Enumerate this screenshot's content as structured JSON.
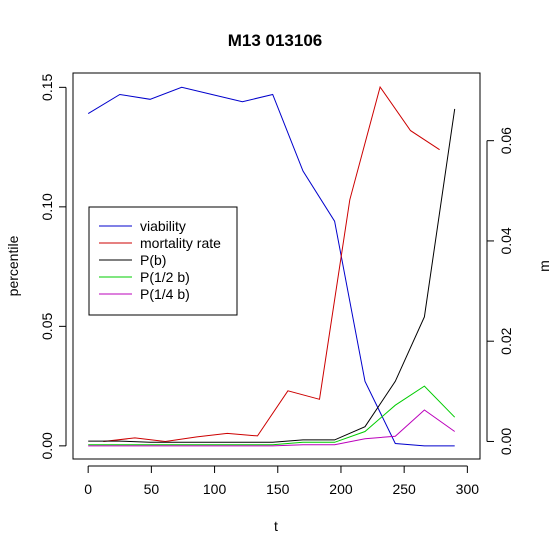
{
  "chart_data": {
    "type": "line",
    "title": "M13 013106",
    "xlabel": "t",
    "ylabel_left": "percentile",
    "ylabel_right": "m",
    "xlim": [
      -12,
      310
    ],
    "ylim_left": [
      -0.0055,
      0.156
    ],
    "ylim_right": [
      -0.0035,
      0.0735
    ],
    "x_ticks": [
      0,
      50,
      100,
      150,
      200,
      250,
      300
    ],
    "y_ticks_left": [
      0.0,
      0.05,
      0.1,
      0.15
    ],
    "y_ticks_left_labels": [
      "0.00",
      "0.05",
      "0.10",
      "0.15"
    ],
    "y_ticks_right": [
      0.0,
      0.02,
      0.04,
      0.06
    ],
    "y_ticks_right_labels": [
      "0.00",
      "0.02",
      "0.04",
      "0.06"
    ],
    "grid": false,
    "legend_position": "left-middle",
    "series": [
      {
        "name": "viability",
        "color": "#0000cc",
        "axis": "left",
        "x": [
          0,
          25,
          49,
          74,
          98,
          122,
          146,
          170,
          195,
          219,
          243,
          266,
          290
        ],
        "y": [
          0.139,
          0.147,
          0.145,
          0.15,
          0.147,
          0.144,
          0.147,
          0.115,
          0.094,
          0.027,
          0.001,
          0.0,
          0.0
        ]
      },
      {
        "name": "mortality rate",
        "color": "#cc0000",
        "axis": "right",
        "x": [
          12,
          37,
          61,
          86,
          110,
          134,
          158,
          183,
          207,
          231,
          255,
          278
        ],
        "y": [
          0.0,
          0.0007,
          0.0,
          0.0009,
          0.0016,
          0.0011,
          0.0101,
          0.0084,
          0.0482,
          0.0707,
          0.062,
          0.0582
        ]
      },
      {
        "name": "P(b)",
        "color": "#000000",
        "axis": "left",
        "x": [
          0,
          25,
          49,
          74,
          98,
          122,
          146,
          170,
          195,
          219,
          243,
          266,
          290
        ],
        "y": [
          0.002,
          0.002,
          0.0015,
          0.0015,
          0.0015,
          0.0015,
          0.0015,
          0.0025,
          0.0025,
          0.008,
          0.027,
          0.054,
          0.141
        ]
      },
      {
        "name": "P(1/2 b)",
        "color": "#00cc00",
        "axis": "left",
        "x": [
          0,
          25,
          49,
          74,
          98,
          122,
          146,
          170,
          195,
          219,
          243,
          266,
          290
        ],
        "y": [
          0.0005,
          0.0005,
          0.0005,
          0.0005,
          0.0005,
          0.0005,
          0.0005,
          0.0015,
          0.0015,
          0.006,
          0.017,
          0.025,
          0.012
        ]
      },
      {
        "name": "P(1/4 b)",
        "color": "#bb00bb",
        "axis": "left",
        "x": [
          0,
          25,
          49,
          74,
          98,
          122,
          146,
          170,
          195,
          219,
          243,
          266,
          290
        ],
        "y": [
          0.0,
          0.0,
          0.0,
          0.0,
          0.0,
          0.0,
          0.0,
          0.0005,
          0.0005,
          0.003,
          0.004,
          0.015,
          0.006
        ]
      }
    ]
  }
}
